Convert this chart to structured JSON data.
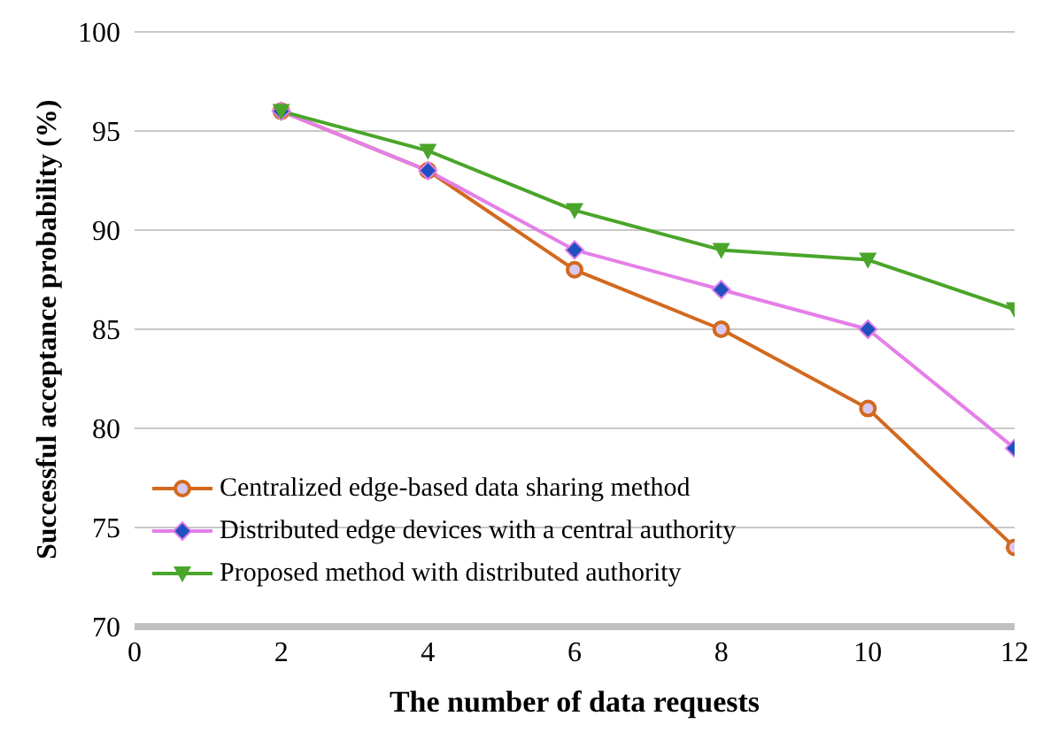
{
  "chart_data": {
    "type": "line",
    "xlabel": "The number of data requests",
    "ylabel": "Successful acceptance probability (%)",
    "x": [
      2,
      4,
      6,
      8,
      10,
      12
    ],
    "series": [
      {
        "name": "Centralized edge-based data sharing method",
        "color": "#d2691e",
        "marker": "circle",
        "values": [
          96,
          93,
          88,
          85,
          81,
          74
        ]
      },
      {
        "name": "Distributed edge devices with a central authority",
        "color": "#e47fe8",
        "marker": "diamond",
        "values": [
          96,
          93,
          89,
          87,
          85,
          79
        ]
      },
      {
        "name": "Proposed method with distributed authority",
        "color": "#4aa52a",
        "marker": "triangle-down",
        "values": [
          96,
          94,
          91,
          89,
          88.5,
          86
        ]
      }
    ],
    "xlim": [
      0,
      12
    ],
    "xticks": [
      0,
      2,
      4,
      6,
      8,
      10,
      12
    ],
    "ylim": [
      70,
      100
    ],
    "yticks": [
      70,
      75,
      80,
      85,
      90,
      95,
      100
    ],
    "grid": "y",
    "legend": "bottom left",
    "line_style": "solid"
  }
}
